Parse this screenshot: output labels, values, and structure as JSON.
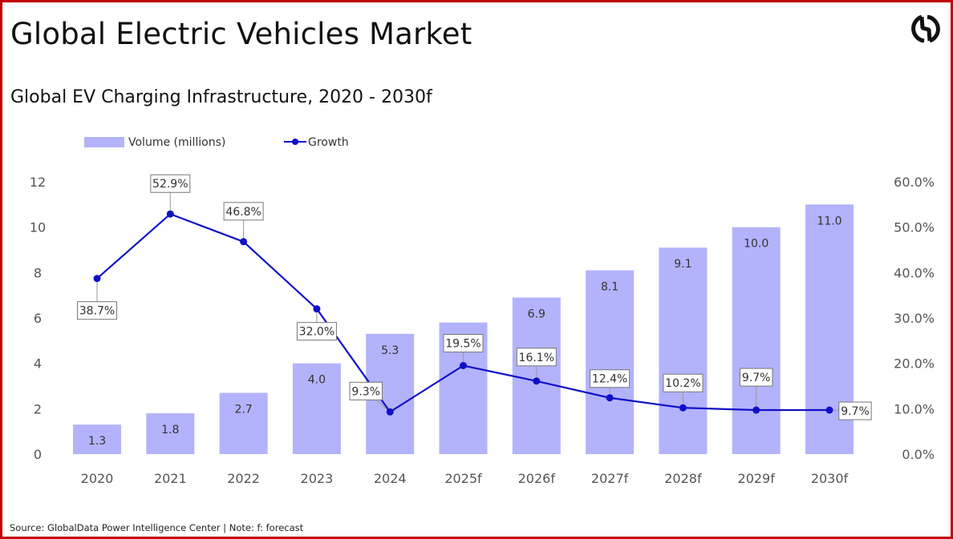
{
  "header": {
    "title": "Global Electric Vehicles Market",
    "subtitle": "Global EV Charging Infrastructure, 2020 - 2030f",
    "logo_icon": "globaldata-logo-icon"
  },
  "footer": {
    "source": "Source: GlobalData Power Intelligence Center | Note: f: forecast"
  },
  "colors": {
    "bar": "#b3b3fb",
    "line": "#1010c8",
    "border": "#c00000"
  },
  "chart_data": {
    "type": "bar+line",
    "categories": [
      "2020",
      "2021",
      "2022",
      "2023",
      "2024",
      "2025f",
      "2026f",
      "2027f",
      "2028f",
      "2029f",
      "2030f"
    ],
    "series": [
      {
        "name": "Volume (millions)",
        "type": "bar",
        "axis": "left",
        "values": [
          1.3,
          1.8,
          2.7,
          4.0,
          5.3,
          5.8,
          6.9,
          8.1,
          9.1,
          10.0,
          11.0
        ],
        "labels": [
          "1.3",
          "1.8",
          "2.7",
          "4.0",
          "5.3",
          "",
          "6.9",
          "8.1",
          "9.1",
          "10.0",
          "11.0"
        ]
      },
      {
        "name": "Growth",
        "type": "line",
        "axis": "right",
        "values": [
          38.7,
          52.9,
          46.8,
          32.0,
          9.3,
          19.5,
          16.1,
          12.4,
          10.2,
          9.7,
          9.7
        ],
        "labels": [
          "38.7%",
          "52.9%",
          "46.8%",
          "32.0%",
          "9.3%",
          "19.5%",
          "16.1%",
          "12.4%",
          "10.2%",
          "9.7%",
          "9.7%"
        ]
      }
    ],
    "y_left": {
      "range": [
        0,
        12
      ],
      "ticks": [
        "0",
        "2",
        "4",
        "6",
        "8",
        "10",
        "12"
      ]
    },
    "y_right": {
      "range": [
        0,
        60
      ],
      "ticks": [
        "0.0%",
        "10.0%",
        "20.0%",
        "30.0%",
        "40.0%",
        "50.0%",
        "60.0%"
      ]
    },
    "legend": {
      "placement": "top-left",
      "items": [
        "Volume (millions)",
        "Growth"
      ]
    },
    "grid": false
  }
}
